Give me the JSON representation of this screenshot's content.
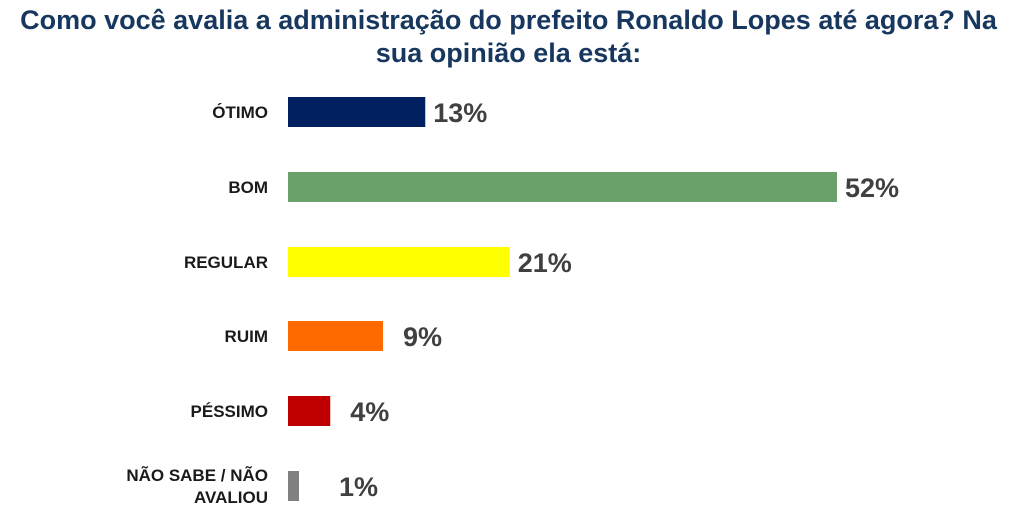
{
  "chart_data": {
    "type": "bar",
    "orientation": "horizontal",
    "title": "Como você avalia a administração do prefeito Ronaldo Lopes até agora? Na sua opinião ela está:",
    "categories": [
      [
        "ÓTIMO"
      ],
      [
        "BOM"
      ],
      [
        "REGULAR"
      ],
      [
        "RUIM"
      ],
      [
        "PÉSSIMO"
      ],
      [
        "NÃO SABE / NÃO",
        "AVALIOU"
      ]
    ],
    "values": [
      13,
      52,
      21,
      9,
      4,
      1
    ],
    "value_labels": [
      "13%",
      "52%",
      "21%",
      "9%",
      "4%",
      "1%"
    ],
    "colors": [
      "#002060",
      "#6aa16a",
      "#ffff00",
      "#ff6a00",
      "#c00000",
      "#808080"
    ],
    "xlim": [
      0,
      52
    ],
    "grid": false,
    "legend": "none"
  }
}
